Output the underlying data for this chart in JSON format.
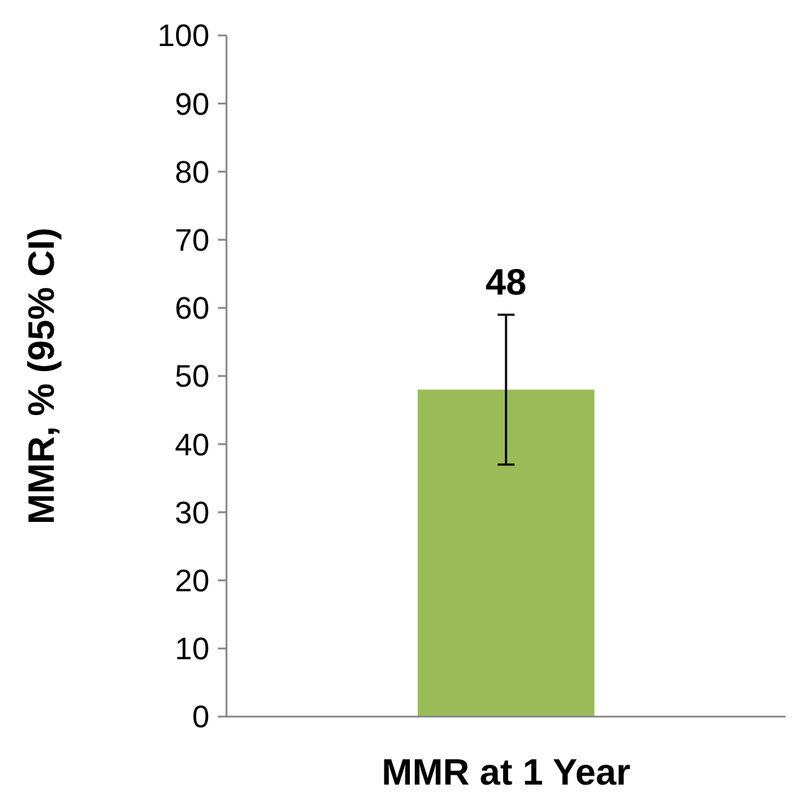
{
  "chart_data": {
    "type": "bar",
    "ylabel": "MMR, % (95% CI)",
    "categories": [
      "MMR at 1 Year"
    ],
    "values": [
      48
    ],
    "errors": [
      [
        37,
        59
      ]
    ],
    "color": "#9bbb59",
    "data_labels": true,
    "ylim": [
      0,
      100
    ],
    "yticks": [
      0,
      10,
      20,
      30,
      40,
      50,
      60,
      70,
      80,
      90,
      100
    ],
    "grid": false
  }
}
